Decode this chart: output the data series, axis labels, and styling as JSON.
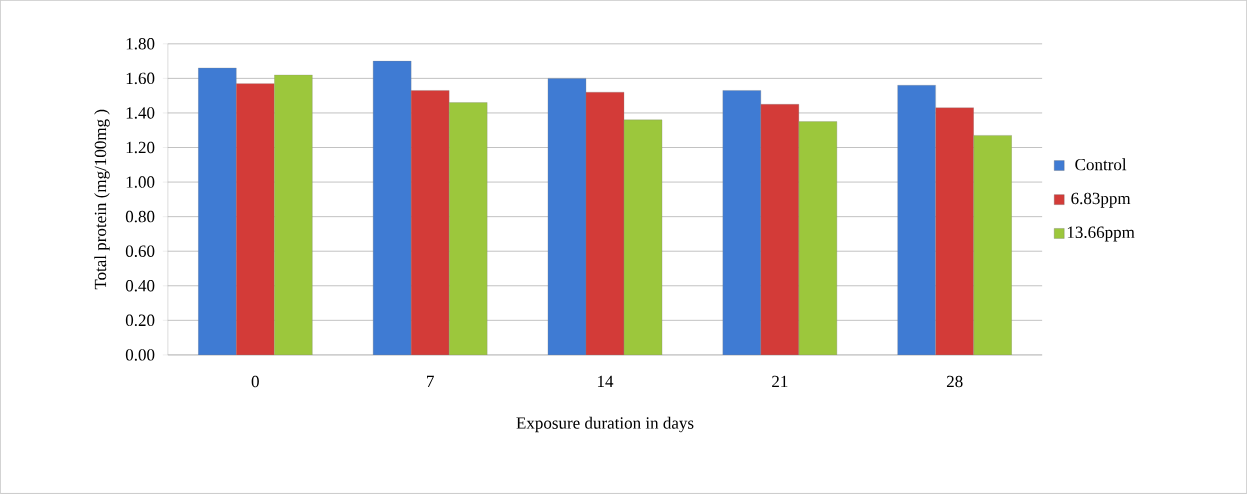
{
  "chart_data": {
    "type": "bar",
    "xlabel": "Exposure duration  in days",
    "ylabel": "Total protein (mg/100mg )",
    "categories": [
      "0",
      "7",
      "14",
      "21",
      "28"
    ],
    "series": [
      {
        "name": "Control",
        "color": "#3f7bd3",
        "values": [
          1.66,
          1.7,
          1.6,
          1.53,
          1.56
        ]
      },
      {
        "name": "6.83ppm",
        "color": "#d33b38",
        "values": [
          1.57,
          1.53,
          1.52,
          1.45,
          1.43
        ]
      },
      {
        "name": "13.66ppm",
        "color": "#9cc73c",
        "values": [
          1.62,
          1.46,
          1.36,
          1.35,
          1.27
        ]
      }
    ],
    "ylim": [
      0,
      1.8
    ],
    "yticks": [
      {
        "value": 0,
        "label": "0.00"
      },
      {
        "value": 0.2,
        "label": "0.20"
      },
      {
        "value": 0.4,
        "label": "0.40"
      },
      {
        "value": 0.6,
        "label": "0.60"
      },
      {
        "value": 0.8,
        "label": "0.80"
      },
      {
        "value": 1.0,
        "label": "1.00"
      },
      {
        "value": 1.2,
        "label": "1.20"
      },
      {
        "value": 1.4,
        "label": "1.40"
      },
      {
        "value": 1.6,
        "label": "1.60"
      },
      {
        "value": 1.8,
        "label": "1.80"
      }
    ],
    "grid": "y",
    "legend": "right"
  }
}
